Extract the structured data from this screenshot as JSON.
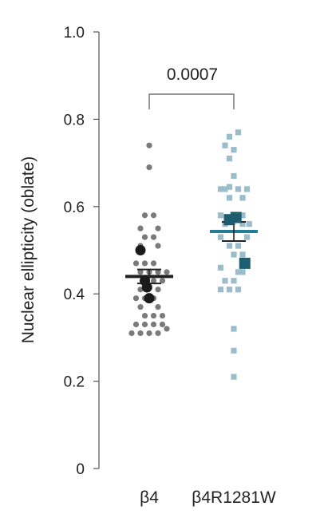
{
  "chart_data": {
    "type": "scatter",
    "ylabel": "Nuclear ellipticity (oblate)",
    "ylim": [
      0,
      1.0
    ],
    "yticks": [
      {
        "value": 0,
        "label": "0"
      },
      {
        "value": 0.2,
        "label": "0.2"
      },
      {
        "value": 0.4,
        "label": "0.4"
      },
      {
        "value": 0.6,
        "label": "0.6"
      },
      {
        "value": 0.8,
        "label": "0.8"
      },
      {
        "value": 1.0,
        "label": "1.0"
      }
    ],
    "categories": [
      "β4",
      "β4R1281W"
    ],
    "colors": {
      "b4_point": "#7a7a7a",
      "b4_mean": "#222222",
      "mut_point": "#9bbccb",
      "mut_mean": "#237e95",
      "mut_rep": "#1d5f70"
    },
    "annotation": {
      "text": "0.0007"
    },
    "series": [
      {
        "category": "β4",
        "mean": 0.44,
        "sem": 0.016,
        "points": [
          {
            "x": 0.0,
            "y": 0.74
          },
          {
            "x": 0.0,
            "y": 0.69
          },
          {
            "x": -0.1,
            "y": 0.58
          },
          {
            "x": 0.1,
            "y": 0.58
          },
          {
            "x": -0.2,
            "y": 0.55
          },
          {
            "x": 0.2,
            "y": 0.55
          },
          {
            "x": -0.1,
            "y": 0.53
          },
          {
            "x": 0.1,
            "y": 0.53
          },
          {
            "x": -0.2,
            "y": 0.51
          },
          {
            "x": 0.2,
            "y": 0.51
          },
          {
            "x": -0.3,
            "y": 0.47
          },
          {
            "x": -0.1,
            "y": 0.47
          },
          {
            "x": 0.1,
            "y": 0.47
          },
          {
            "x": -0.2,
            "y": 0.45
          },
          {
            "x": 0.0,
            "y": 0.45
          },
          {
            "x": 0.2,
            "y": 0.45
          },
          {
            "x": 0.4,
            "y": 0.45
          },
          {
            "x": -0.1,
            "y": 0.43
          },
          {
            "x": 0.1,
            "y": 0.43
          },
          {
            "x": 0.3,
            "y": 0.43
          },
          {
            "x": -0.2,
            "y": 0.41
          },
          {
            "x": 0.2,
            "y": 0.41
          },
          {
            "x": -0.3,
            "y": 0.39
          },
          {
            "x": -0.1,
            "y": 0.39
          },
          {
            "x": 0.1,
            "y": 0.39
          },
          {
            "x": -0.2,
            "y": 0.37
          },
          {
            "x": 0.2,
            "y": 0.37
          },
          {
            "x": -0.1,
            "y": 0.35
          },
          {
            "x": 0.1,
            "y": 0.35
          },
          {
            "x": 0.3,
            "y": 0.35
          },
          {
            "x": -0.3,
            "y": 0.33
          },
          {
            "x": -0.1,
            "y": 0.33
          },
          {
            "x": 0.1,
            "y": 0.33
          },
          {
            "x": 0.3,
            "y": 0.33
          },
          {
            "x": -0.4,
            "y": 0.31
          },
          {
            "x": -0.2,
            "y": 0.31
          },
          {
            "x": 0.0,
            "y": 0.31
          },
          {
            "x": 0.2,
            "y": 0.31
          },
          {
            "x": 0.4,
            "y": 0.32
          }
        ],
        "replicates": [
          {
            "x": -0.2,
            "y": 0.5
          },
          {
            "x": -0.1,
            "y": 0.43
          },
          {
            "x": -0.05,
            "y": 0.415
          },
          {
            "x": 0.0,
            "y": 0.39
          }
        ]
      },
      {
        "category": "β4R1281W",
        "mean": 0.543,
        "sem": 0.022,
        "points": [
          {
            "x": -0.1,
            "y": 0.76
          },
          {
            "x": 0.1,
            "y": 0.77
          },
          {
            "x": -0.2,
            "y": 0.74
          },
          {
            "x": 0.0,
            "y": 0.73
          },
          {
            "x": -0.1,
            "y": 0.71
          },
          {
            "x": 0.0,
            "y": 0.67
          },
          {
            "x": -0.1,
            "y": 0.645
          },
          {
            "x": -0.3,
            "y": 0.64
          },
          {
            "x": -0.2,
            "y": 0.64
          },
          {
            "x": 0.1,
            "y": 0.64
          },
          {
            "x": 0.3,
            "y": 0.64
          },
          {
            "x": 0.2,
            "y": 0.62
          },
          {
            "x": -0.1,
            "y": 0.62
          },
          {
            "x": -0.3,
            "y": 0.58
          },
          {
            "x": 0.2,
            "y": 0.58
          },
          {
            "x": -0.2,
            "y": 0.56
          },
          {
            "x": 0.2,
            "y": 0.56
          },
          {
            "x": 0.35,
            "y": 0.56
          },
          {
            "x": -0.3,
            "y": 0.53
          },
          {
            "x": 0.3,
            "y": 0.53
          },
          {
            "x": -0.1,
            "y": 0.51
          },
          {
            "x": 0.1,
            "y": 0.51
          },
          {
            "x": 0.0,
            "y": 0.49
          },
          {
            "x": 0.2,
            "y": 0.49
          },
          {
            "x": -0.3,
            "y": 0.46
          },
          {
            "x": 0.1,
            "y": 0.45
          },
          {
            "x": 0.2,
            "y": 0.45
          },
          {
            "x": -0.2,
            "y": 0.43
          },
          {
            "x": 0.0,
            "y": 0.43
          },
          {
            "x": -0.3,
            "y": 0.41
          },
          {
            "x": -0.1,
            "y": 0.41
          },
          {
            "x": 0.1,
            "y": 0.41
          },
          {
            "x": 0.0,
            "y": 0.32
          },
          {
            "x": 0.0,
            "y": 0.27
          },
          {
            "x": 0.0,
            "y": 0.21
          }
        ],
        "replicates": [
          {
            "x": -0.1,
            "y": 0.57
          },
          {
            "x": 0.05,
            "y": 0.575
          },
          {
            "x": 0.25,
            "y": 0.47
          }
        ]
      }
    ]
  }
}
